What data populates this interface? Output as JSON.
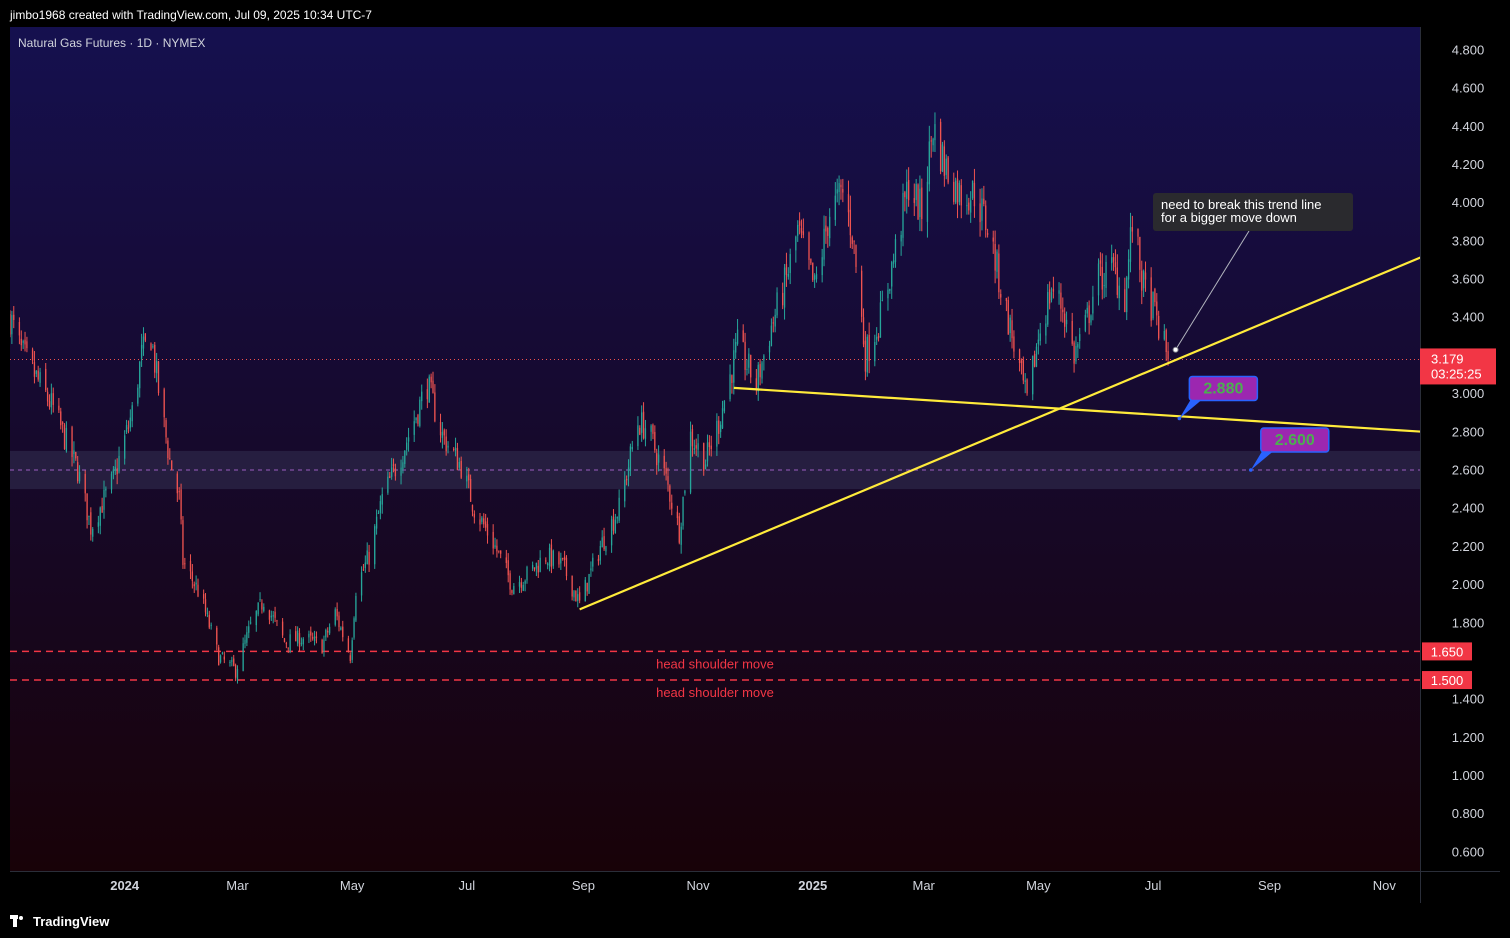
{
  "header": {
    "attribution": "jimbo1968 created with TradingView.com, Jul 09, 2025 10:34 UTC-7"
  },
  "footer": {
    "brand": "TradingView",
    "logo_icon": "tradingview-logo-icon"
  },
  "colors": {
    "bg_top": "#15104f",
    "bg_bottom": "#180208",
    "up": "#26a69a",
    "down": "#ef5350",
    "trendline": "#ffeb3b",
    "dashed_red": "#f23645",
    "label_box": "#9c27b0",
    "label_border": "#2962ff",
    "label_text": "#4caf50",
    "price_tag": "#f23645",
    "zone": "#3a3a5a"
  },
  "chart_data": {
    "type": "candlestick",
    "symbol": "Natural Gas Futures · 1D · NYMEX",
    "ylim": [
      0.5,
      4.92
    ],
    "xlim": [
      "2023-11-01",
      "2025-11-20"
    ],
    "y_ticks": [
      "4.800",
      "4.600",
      "4.400",
      "4.200",
      "4.000",
      "3.800",
      "3.600",
      "3.400",
      "3.000",
      "2.800",
      "2.600",
      "2.400",
      "2.200",
      "2.000",
      "1.800",
      "1.400",
      "1.200",
      "1.000",
      "0.800",
      "0.600"
    ],
    "x_ticks": [
      {
        "label": "2024",
        "date": "2024-01-01",
        "bold": true
      },
      {
        "label": "Mar",
        "date": "2024-03-01",
        "bold": false
      },
      {
        "label": "May",
        "date": "2024-05-01",
        "bold": false
      },
      {
        "label": "Jul",
        "date": "2024-07-01",
        "bold": false
      },
      {
        "label": "Sep",
        "date": "2024-09-01",
        "bold": false
      },
      {
        "label": "Nov",
        "date": "2024-11-01",
        "bold": false
      },
      {
        "label": "2025",
        "date": "2025-01-01",
        "bold": true
      },
      {
        "label": "Mar",
        "date": "2025-03-01",
        "bold": false
      },
      {
        "label": "May",
        "date": "2025-05-01",
        "bold": false
      },
      {
        "label": "Jul",
        "date": "2025-07-01",
        "bold": false
      },
      {
        "label": "Sep",
        "date": "2025-09-01",
        "bold": false
      },
      {
        "label": "Nov",
        "date": "2025-11-01",
        "bold": false
      }
    ],
    "price_anchors": [
      [
        "2023-11-01",
        3.4
      ],
      [
        "2023-11-07",
        3.22
      ],
      [
        "2023-11-14",
        3.1
      ],
      [
        "2023-11-24",
        2.92
      ],
      [
        "2023-12-07",
        2.6
      ],
      [
        "2023-12-14",
        2.3
      ],
      [
        "2023-12-26",
        2.55
      ],
      [
        "2024-01-05",
        2.9
      ],
      [
        "2024-01-10",
        3.2
      ],
      [
        "2024-01-15",
        3.3
      ],
      [
        "2024-01-20",
        2.95
      ],
      [
        "2024-01-25",
        2.65
      ],
      [
        "2024-01-30",
        2.45
      ],
      [
        "2024-02-01",
        2.12
      ],
      [
        "2024-02-10",
        1.95
      ],
      [
        "2024-02-20",
        1.62
      ],
      [
        "2024-02-29",
        1.55
      ],
      [
        "2024-03-08",
        1.78
      ],
      [
        "2024-03-15",
        1.92
      ],
      [
        "2024-03-26",
        1.7
      ],
      [
        "2024-04-05",
        1.72
      ],
      [
        "2024-04-15",
        1.68
      ],
      [
        "2024-04-22",
        1.85
      ],
      [
        "2024-04-30",
        1.63
      ],
      [
        "2024-05-03",
        1.98
      ],
      [
        "2024-05-10",
        2.15
      ],
      [
        "2024-05-17",
        2.45
      ],
      [
        "2024-05-28",
        2.7
      ],
      [
        "2024-06-10",
        3.05
      ],
      [
        "2024-06-18",
        2.78
      ],
      [
        "2024-06-28",
        2.62
      ],
      [
        "2024-07-05",
        2.4
      ],
      [
        "2024-07-15",
        2.22
      ],
      [
        "2024-07-25",
        2.0
      ],
      [
        "2024-08-02",
        2.05
      ],
      [
        "2024-08-12",
        2.15
      ],
      [
        "2024-08-21",
        2.1
      ],
      [
        "2024-08-30",
        1.9
      ],
      [
        "2024-09-10",
        2.2
      ],
      [
        "2024-09-20",
        2.4
      ],
      [
        "2024-09-30",
        2.85
      ],
      [
        "2024-10-05",
        2.82
      ],
      [
        "2024-10-15",
        2.55
      ],
      [
        "2024-10-22",
        2.28
      ],
      [
        "2024-10-28",
        2.78
      ],
      [
        "2024-11-05",
        2.65
      ],
      [
        "2024-11-12",
        2.85
      ],
      [
        "2024-11-22",
        3.25
      ],
      [
        "2024-12-02",
        3.05
      ],
      [
        "2024-12-10",
        3.35
      ],
      [
        "2024-12-18",
        3.6
      ],
      [
        "2024-12-24",
        3.85
      ],
      [
        "2025-01-02",
        3.55
      ],
      [
        "2025-01-10",
        3.95
      ],
      [
        "2025-01-17",
        4.05
      ],
      [
        "2025-01-22",
        3.85
      ],
      [
        "2025-01-29",
        3.2
      ],
      [
        "2025-02-06",
        3.4
      ],
      [
        "2025-02-14",
        3.75
      ],
      [
        "2025-02-21",
        4.1
      ],
      [
        "2025-02-28",
        3.95
      ],
      [
        "2025-03-06",
        4.4
      ],
      [
        "2025-03-12",
        4.2
      ],
      [
        "2025-03-20",
        4.05
      ],
      [
        "2025-03-28",
        4.05
      ],
      [
        "2025-04-05",
        3.85
      ],
      [
        "2025-04-10",
        3.6
      ],
      [
        "2025-04-17",
        3.3
      ],
      [
        "2025-04-25",
        2.95
      ],
      [
        "2025-05-01",
        3.3
      ],
      [
        "2025-05-08",
        3.55
      ],
      [
        "2025-05-14",
        3.45
      ],
      [
        "2025-05-20",
        3.2
      ],
      [
        "2025-05-26",
        3.35
      ],
      [
        "2025-06-01",
        3.6
      ],
      [
        "2025-06-10",
        3.65
      ],
      [
        "2025-06-16",
        3.5
      ],
      [
        "2025-06-20",
        3.9
      ],
      [
        "2025-06-26",
        3.55
      ],
      [
        "2025-07-01",
        3.45
      ],
      [
        "2025-07-09",
        3.18
      ]
    ],
    "current_price": {
      "value": 3.179,
      "label": "3.179",
      "countdown": "03:25:25"
    },
    "trendlines": [
      {
        "name": "rising-support-trendline",
        "from": [
          "2024-08-30",
          1.87
        ],
        "to": [
          "2025-11-22",
          3.72
        ]
      },
      {
        "name": "neckline-trendline",
        "from": [
          "2024-11-20",
          3.03
        ],
        "to": [
          "2025-11-22",
          2.8
        ]
      }
    ],
    "zone": {
      "from": 2.5,
      "to": 2.7
    },
    "horizontal_levels": [
      {
        "name": "level-2600",
        "value": 2.6,
        "style": "dashed-purple"
      },
      {
        "name": "level-1650",
        "value": 1.65,
        "style": "dashed-red",
        "label": "1.650",
        "annotation": "head shoulder move"
      },
      {
        "name": "level-1500",
        "value": 1.5,
        "style": "dashed-red",
        "label": "1.500",
        "annotation": "head shoulder move"
      }
    ],
    "target_labels": [
      {
        "name": "target-2880",
        "text": "2.880",
        "anchor": [
          "2025-07-15",
          2.87
        ]
      },
      {
        "name": "target-2600",
        "text": "2.600",
        "anchor": [
          "2025-08-22",
          2.6
        ]
      }
    ],
    "callout": {
      "lines": [
        "need to break this trend line",
        "for a  bigger move down"
      ],
      "anchor": [
        "2025-07-13",
        3.23
      ]
    }
  }
}
